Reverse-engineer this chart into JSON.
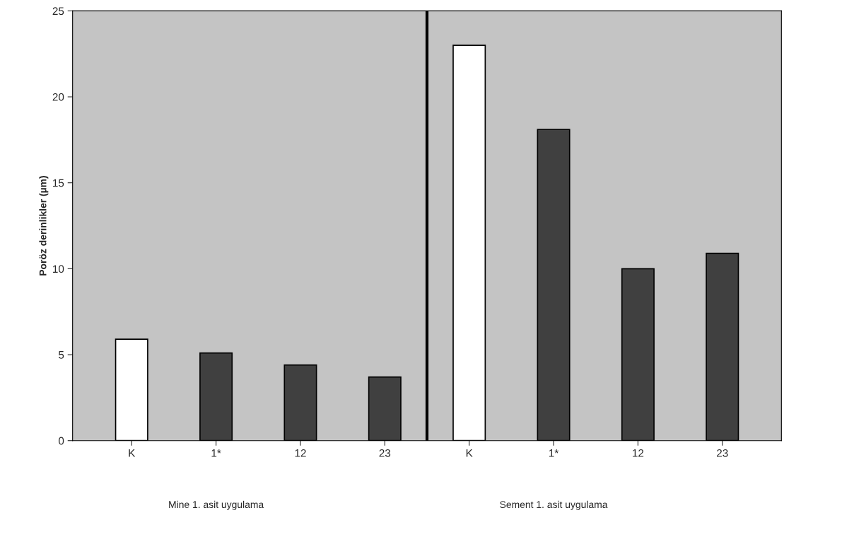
{
  "chart_data": {
    "type": "bar",
    "ylabel": "Poröz derinlikler (µm)",
    "categories": [
      "K",
      "1*",
      "12",
      "23",
      "K",
      "1*",
      "12",
      "23"
    ],
    "values": [
      5.9,
      5.1,
      4.4,
      3.7,
      23,
      18.1,
      10,
      10.9
    ],
    "colors": [
      "#ffffff",
      "#404040",
      "#404040",
      "#404040",
      "#ffffff",
      "#404040",
      "#404040",
      "#404040"
    ],
    "ylim": [
      0,
      25
    ],
    "yticks": [
      0,
      5,
      10,
      15,
      20,
      25
    ],
    "annotations": [
      "Mine 1. asit uygulama",
      "Sement 1. asit uygulama"
    ]
  }
}
